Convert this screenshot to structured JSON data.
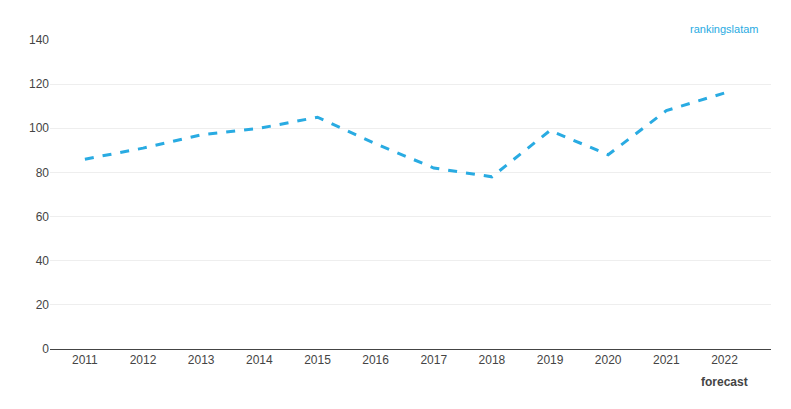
{
  "chart_data": {
    "type": "line",
    "x": [
      2011,
      2012,
      2013,
      2014,
      2015,
      2016,
      2017,
      2018,
      2019,
      2020,
      2021,
      2022
    ],
    "values": [
      86,
      91,
      97,
      100,
      105,
      93,
      82,
      78,
      99,
      88,
      108,
      116
    ],
    "color": "#29ABE2",
    "line_style": "dashed",
    "xlim": [
      2010.4,
      2022.8
    ],
    "xticks": [
      2011,
      2012,
      2013,
      2014,
      2015,
      2016,
      2017,
      2018,
      2019,
      2020,
      2021,
      2022
    ],
    "ylim": [
      0,
      140
    ],
    "yticks": [
      0,
      20,
      40,
      60,
      80,
      100,
      120,
      140
    ],
    "grid": "y",
    "annotations": [
      {
        "text": "forecast",
        "x": 2022
      },
      {
        "text": "rankingslatam",
        "color": "#29ABE2"
      }
    ]
  }
}
